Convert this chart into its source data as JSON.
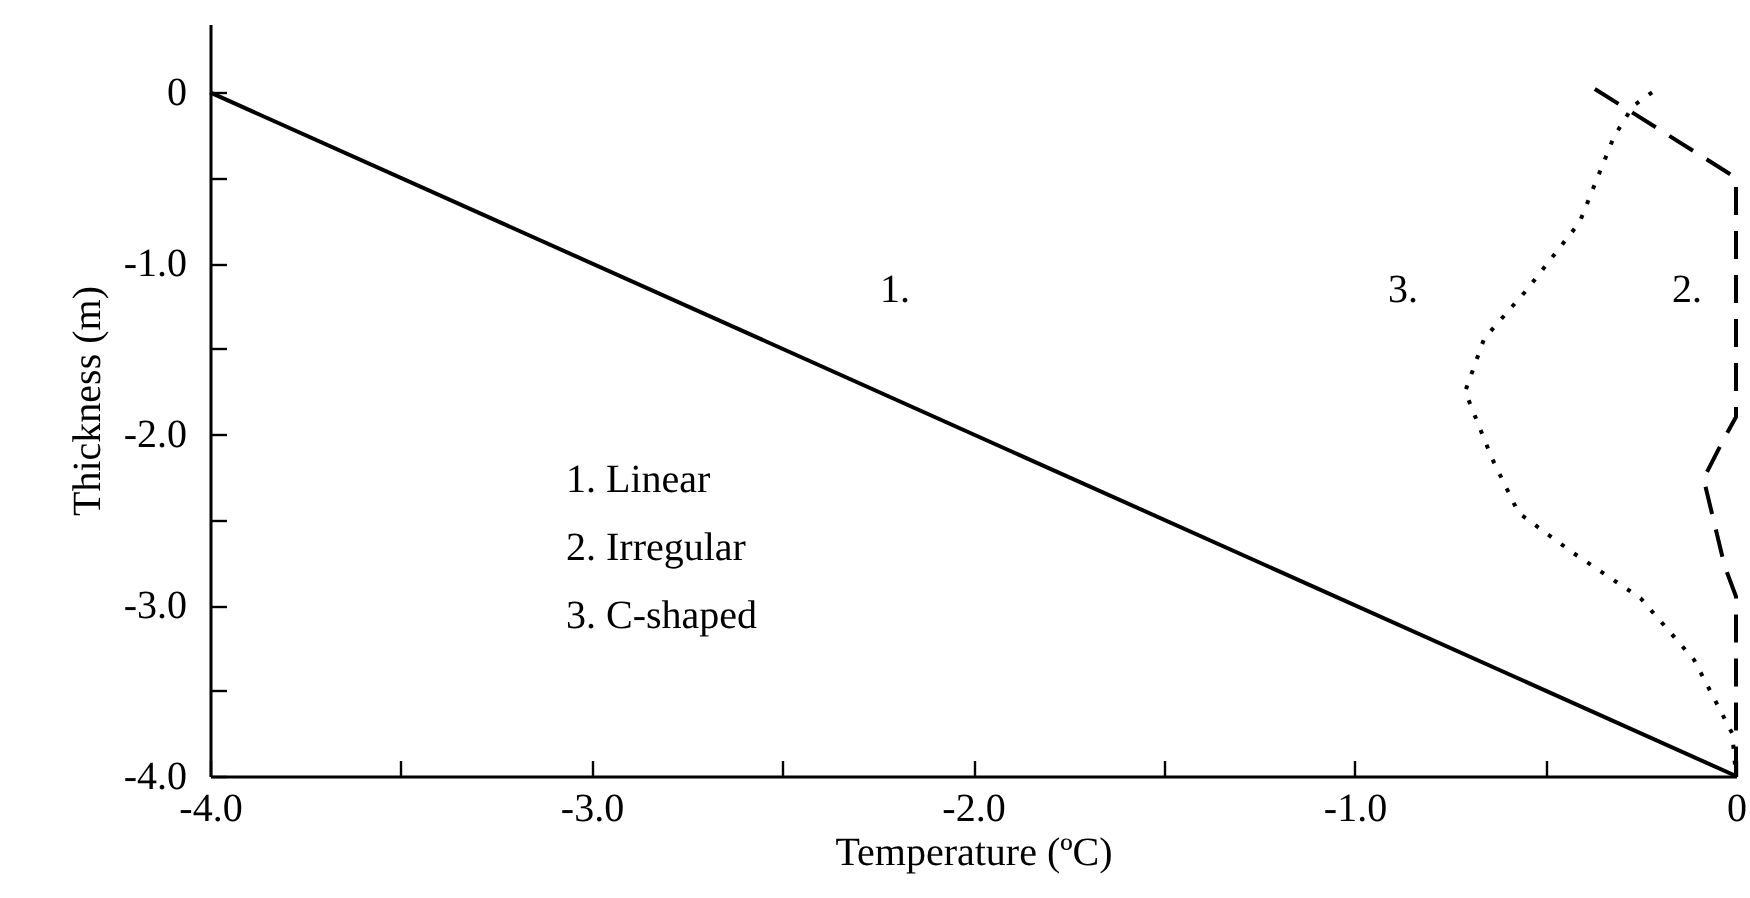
{
  "chart_data": {
    "type": "line",
    "xlabel": "Temperature (ºC)",
    "ylabel": "Thickness (m)",
    "xlim": [
      -4.0,
      0
    ],
    "ylim": [
      -4.0,
      0.4
    ],
    "xticks": [
      {
        "value": -4,
        "label": "-4.0"
      },
      {
        "value": -3.5,
        "label": null
      },
      {
        "value": -3,
        "label": "-3.0"
      },
      {
        "value": -2.5,
        "label": null
      },
      {
        "value": -2,
        "label": "-2.0"
      },
      {
        "value": -1.5,
        "label": null
      },
      {
        "value": -1,
        "label": "-1.0"
      },
      {
        "value": -0.5,
        "label": null
      },
      0
    ],
    "yticks": [
      {
        "value": -4,
        "label": "-4.0"
      },
      {
        "value": -3.5,
        "label": null
      },
      {
        "value": -3,
        "label": "-3.0"
      },
      {
        "value": -2.5,
        "label": null
      },
      {
        "value": -2,
        "label": "-2.0"
      },
      {
        "value": -1.5,
        "label": null
      },
      {
        "value": -1,
        "label": "-1.0"
      },
      {
        "value": -0.5,
        "label": null
      },
      0
    ],
    "grid": false,
    "marker": "none",
    "series": [
      {
        "color": "#000000",
        "line_style": "solid",
        "x": [
          -4.0,
          0
        ],
        "values": [
          0,
          -4.0
        ]
      },
      {
        "color": "#000000",
        "line_style": "dashed",
        "x": [
          -0.37,
          0,
          0,
          -0.03,
          -0.085,
          -0.03,
          0,
          0
        ],
        "values": [
          0.02,
          -0.5,
          -1.9,
          -2.02,
          -2.26,
          -2.77,
          -2.95,
          -4.0
        ]
      },
      {
        "color": "#000000",
        "line_style": "dotted",
        "x": [
          -0.22,
          -0.27,
          -0.32,
          -0.41,
          -0.55,
          -0.66,
          -0.71,
          -0.64,
          -0.57,
          -0.43,
          -0.25,
          -0.11,
          -0.01,
          0
        ],
        "values": [
          0,
          -0.08,
          -0.26,
          -0.76,
          -1.16,
          -1.44,
          -1.75,
          -2.14,
          -2.46,
          -2.69,
          -2.96,
          -3.32,
          -3.75,
          -4.0
        ]
      }
    ],
    "annotations": [
      "1.",
      "2.",
      "3.",
      "1. Linear",
      "2. Irregular",
      "3. C-shaped"
    ]
  }
}
